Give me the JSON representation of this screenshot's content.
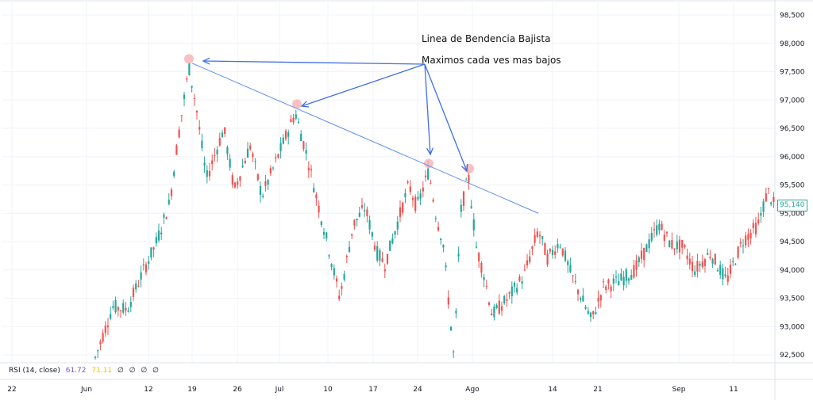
{
  "chart_data": {
    "type": "candlestick",
    "y_ticks": [
      "98,500",
      "98,000",
      "97,500",
      "97,000",
      "96,500",
      "96,000",
      "95,500",
      "95,000",
      "94,500",
      "94,000",
      "93,500",
      "93,000",
      "92,500"
    ],
    "ylim": [
      92350,
      98700
    ],
    "x_ticks": [
      "22",
      "Jun",
      "12",
      "19",
      "26",
      "Jul",
      "10",
      "17",
      "24",
      "Ago",
      "14",
      "21",
      "Sep",
      "11"
    ],
    "last_price": "95,140",
    "annotations": {
      "title": "Linea de Bendencia Bajista",
      "subtitle": "Maximos cada ves mas bajos"
    },
    "trendline": {
      "start": {
        "x": "19",
        "y": 97650
      },
      "end": {
        "x": "Ago",
        "y": 95000
      }
    },
    "key_highs": [
      97700,
      96900,
      95850,
      95760
    ],
    "colors": {
      "up": "#26a69a",
      "down": "#ef5350",
      "trendline": "#5b8def",
      "arrow": "#3f6ee8",
      "marker": "#f6b2b4"
    },
    "indicator": {
      "label": "RSI (14, close)",
      "value1": "61.72",
      "value2": "71.11",
      "extras": [
        "∅",
        "∅",
        "∅",
        "∅"
      ]
    }
  }
}
